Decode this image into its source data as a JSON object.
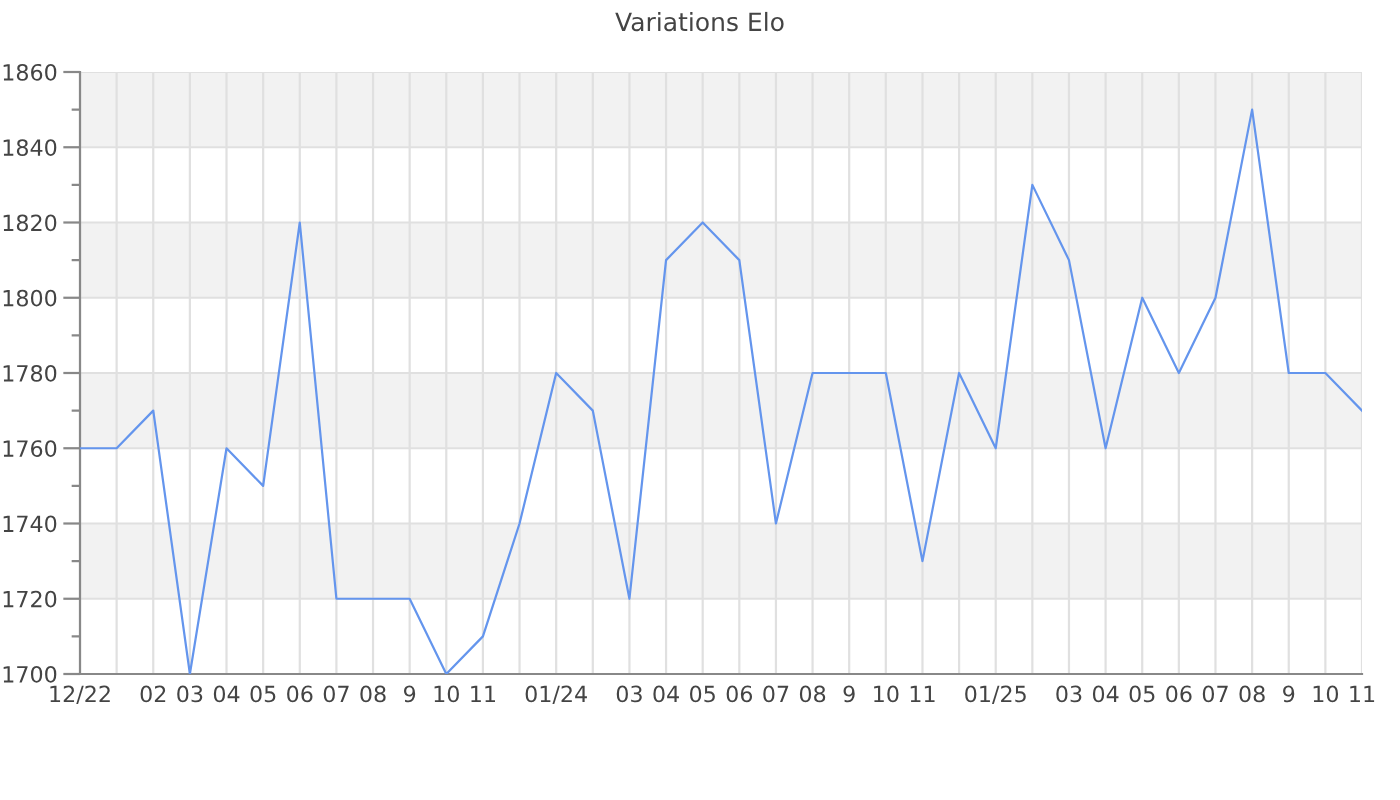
{
  "chart_data": {
    "type": "line",
    "title": "Variations Elo",
    "categories": [
      "12/22",
      null,
      "02",
      "03",
      "04",
      "05",
      "06",
      "07",
      "08",
      "9",
      "10",
      "11",
      null,
      "01/24",
      null,
      "03",
      "04",
      "05",
      "06",
      "07",
      "08",
      "9",
      "10",
      "11",
      null,
      "01/25",
      null,
      "03",
      "04",
      "05",
      "06",
      "07",
      "08",
      "9",
      "10",
      "11"
    ],
    "series": [
      {
        "color": "#6495ed",
        "values": [
          1760,
          1760,
          1770,
          1700,
          1760,
          1750,
          1820,
          1720,
          1720,
          1720,
          1700,
          1710,
          1740,
          1780,
          1770,
          1720,
          1810,
          1820,
          1810,
          1740,
          1780,
          1780,
          1780,
          1730,
          1780,
          1760,
          1830,
          1810,
          1760,
          1800,
          1780,
          1800,
          1850,
          1780,
          1780,
          1770
        ]
      }
    ],
    "ylim": [
      1700,
      1860
    ],
    "yticks": [
      1700,
      {
        "value": 1710,
        "label": null
      },
      1720,
      {
        "value": 1730,
        "label": null
      },
      1740,
      {
        "value": 1750,
        "label": null
      },
      1760,
      {
        "value": 1770,
        "label": null
      },
      1780,
      {
        "value": 1790,
        "label": null
      },
      1800,
      {
        "value": 1810,
        "label": null
      },
      1820,
      {
        "value": 1830,
        "label": null
      },
      1840,
      {
        "value": 1850,
        "label": null
      },
      1860
    ],
    "grid": true,
    "bands": [
      {
        "axis": "y",
        "from": 1720,
        "to": 1740,
        "color": "#f2f2f2"
      },
      {
        "axis": "y",
        "from": 1760,
        "to": 1780,
        "color": "#f2f2f2"
      },
      {
        "axis": "y",
        "from": 1800,
        "to": 1820,
        "color": "#f2f2f2"
      },
      {
        "axis": "y",
        "from": 1840,
        "to": 1860,
        "color": "#f2f2f2"
      }
    ]
  }
}
